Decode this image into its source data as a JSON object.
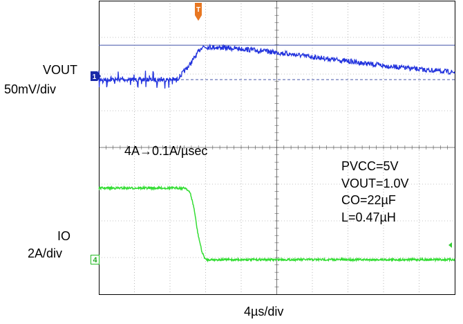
{
  "chart_data": {
    "type": "line",
    "title": "",
    "xlabel": "4µs/div",
    "x_range_us": [
      0,
      40
    ],
    "grid": "on",
    "annotation": "4A→0.1A/µsec",
    "params": [
      "PVCC=5V",
      "VOUT=1.0V",
      "CO=22µF",
      "L=0.47µH"
    ],
    "trigger_marker": "T",
    "series": [
      {
        "name": "VOUT",
        "scale": "50mV/div",
        "channel_marker": "1",
        "color": "#2233dd",
        "x_us": [
          0,
          8.8,
          10.2,
          11.6,
          13,
          16,
          20,
          24,
          28,
          32,
          36,
          40
        ],
        "y_mV": [
          0,
          0,
          20,
          45,
          44,
          42,
          37,
          31,
          25,
          19,
          14,
          10
        ]
      },
      {
        "name": "IO",
        "scale": "2A/div",
        "channel_marker": "4",
        "color": "#33dd33",
        "x_us": [
          0,
          9.8,
          10.3,
          10.7,
          11.1,
          11.6,
          12.0,
          40
        ],
        "y_A": [
          4.0,
          4.0,
          3.7,
          2.9,
          1.6,
          0.5,
          0.1,
          0.1
        ]
      }
    ]
  }
}
